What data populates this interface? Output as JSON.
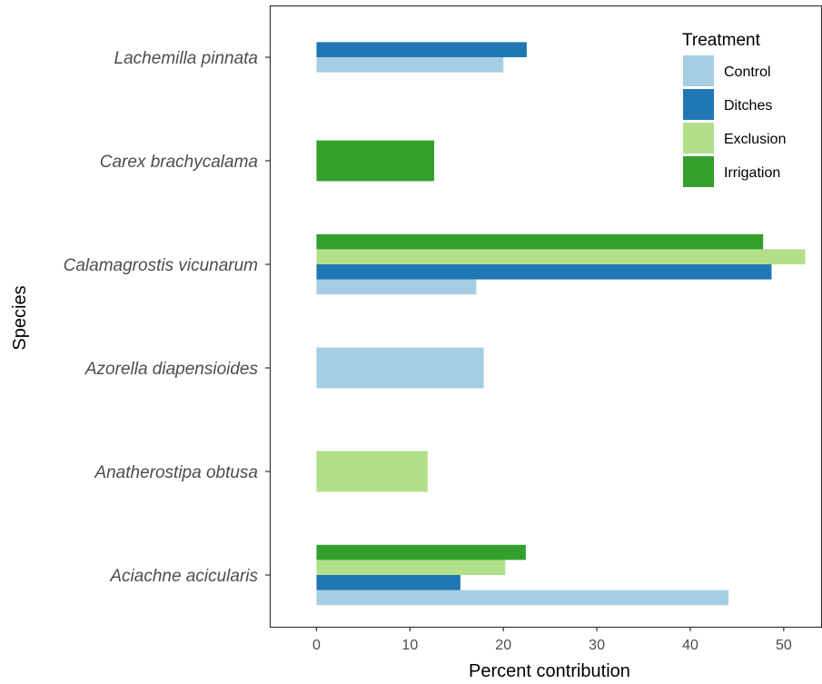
{
  "chart_data": {
    "type": "bar",
    "orientation": "horizontal",
    "xlabel": "Percent contribution",
    "ylabel": "Species",
    "xlim": [
      -5,
      54
    ],
    "xticks": [
      0,
      10,
      20,
      30,
      40,
      50
    ],
    "categories": [
      "Lachemilla pinnata",
      "Carex brachycalama",
      "Calamagrostis vicunarum",
      "Azorella diapensioides",
      "Anatherostipa obtusa",
      "Aciachne acicularis"
    ],
    "legend": {
      "title": "Treatment",
      "position": "top-right"
    },
    "series": [
      {
        "name": "Control",
        "color": "#a6cee3",
        "values": [
          20.0,
          null,
          17.1,
          17.9,
          null,
          44.1
        ]
      },
      {
        "name": "Ditches",
        "color": "#1f78b4",
        "values": [
          22.5,
          null,
          48.7,
          null,
          null,
          15.4
        ]
      },
      {
        "name": "Exclusion",
        "color": "#b2df8a",
        "values": [
          null,
          null,
          52.3,
          null,
          11.9,
          20.2
        ]
      },
      {
        "name": "Irrigation",
        "color": "#33a02c",
        "values": [
          null,
          12.6,
          47.8,
          null,
          null,
          22.4
        ]
      }
    ]
  }
}
